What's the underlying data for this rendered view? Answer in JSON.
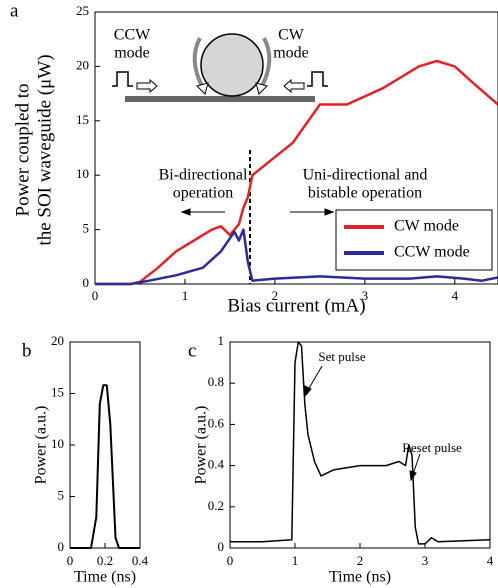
{
  "chart_data": [
    {
      "type": "line",
      "panel_label": "a",
      "xlabel": "Bias current (mA)",
      "ylabel": [
        "Power coupled to",
        "the SOI waveguide (μW)"
      ],
      "xlim": [
        0,
        4.48
      ],
      "xticks": [
        0,
        1,
        2,
        3,
        4
      ],
      "ylim": [
        0,
        25
      ],
      "yticks": [
        0,
        5,
        10,
        15,
        20,
        25
      ],
      "legend": "lower right",
      "annotations": [
        [
          "CCW",
          "mode"
        ],
        [
          "CW",
          "mode"
        ],
        [
          "Bi-directional",
          "operation"
        ],
        [
          "Uni-directional and",
          "bistable operation"
        ]
      ],
      "series": [
        {
          "name": "CW mode",
          "color": "#e32228",
          "x": [
            0,
            0.4,
            0.5,
            0.7,
            0.9,
            1.1,
            1.3,
            1.4,
            1.5,
            1.6,
            1.65,
            1.7,
            1.75,
            1.9,
            2.2,
            2.5,
            2.8,
            3.2,
            3.6,
            3.8,
            4.0,
            4.2,
            4.48
          ],
          "values": [
            0,
            0,
            0.2,
            1.5,
            3,
            4,
            5,
            5.3,
            4.5,
            5.5,
            7,
            8,
            10,
            11,
            13,
            16.5,
            16.5,
            18,
            20,
            20.5,
            20,
            18.5,
            16.5
          ]
        },
        {
          "name": "CCW mode",
          "color": "#2b2b9b",
          "x": [
            0,
            0.4,
            0.6,
            0.9,
            1.2,
            1.4,
            1.55,
            1.6,
            1.65,
            1.7,
            1.75,
            2.0,
            2.5,
            3.0,
            3.5,
            3.8,
            4.1,
            4.3,
            4.48
          ],
          "values": [
            0,
            0,
            0.3,
            0.8,
            1.5,
            3,
            4.8,
            4,
            5,
            2,
            0.3,
            0.5,
            0.7,
            0.5,
            0.5,
            0.7,
            0.5,
            0.3,
            0.6
          ]
        }
      ]
    },
    {
      "type": "line",
      "panel_label": "b",
      "xlabel": "Time (ns)",
      "ylabel": [
        "Power (a.u.)"
      ],
      "xlim": [
        0,
        0.4
      ],
      "xticks": [
        0,
        0.2,
        0.4
      ],
      "ylim": [
        0,
        20
      ],
      "yticks": [
        0,
        5,
        10,
        15,
        20
      ],
      "color": "#000000",
      "x": [
        0,
        0.12,
        0.15,
        0.17,
        0.19,
        0.21,
        0.23,
        0.26,
        0.28,
        0.4
      ],
      "values": [
        0,
        0,
        3,
        14,
        15.8,
        15.8,
        12,
        1,
        0,
        0
      ]
    },
    {
      "type": "line",
      "panel_label": "c",
      "xlabel": "Time (ns)",
      "ylabel": [
        "Power (a.u.)"
      ],
      "xlim": [
        0,
        4
      ],
      "xticks": [
        0,
        1,
        2,
        3,
        4
      ],
      "ylim": [
        0,
        1
      ],
      "yticks": [
        0,
        0.2,
        0.4,
        0.6,
        0.8,
        1
      ],
      "color": "#000000",
      "annotations": [
        [
          "Set pulse"
        ],
        [
          "Reset pulse"
        ]
      ],
      "x": [
        0,
        0.5,
        0.95,
        1.0,
        1.05,
        1.1,
        1.15,
        1.2,
        1.3,
        1.4,
        1.6,
        2.0,
        2.4,
        2.6,
        2.7,
        2.75,
        2.8,
        2.85,
        2.9,
        3.0,
        3.1,
        3.2,
        4
      ],
      "values": [
        0.03,
        0.03,
        0.04,
        0.9,
        1.0,
        0.98,
        0.7,
        0.55,
        0.42,
        0.35,
        0.38,
        0.4,
        0.4,
        0.42,
        0.4,
        0.5,
        0.45,
        0.1,
        0.02,
        0.02,
        0.05,
        0.03,
        0.04
      ]
    }
  ]
}
